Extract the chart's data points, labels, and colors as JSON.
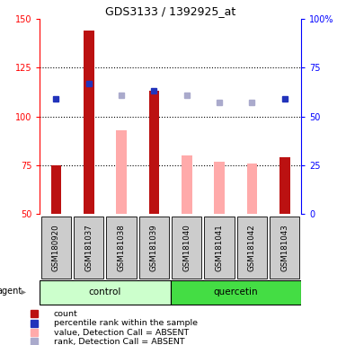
{
  "title": "GDS3133 / 1392925_at",
  "samples": [
    "GSM180920",
    "GSM181037",
    "GSM181038",
    "GSM181039",
    "GSM181040",
    "GSM181041",
    "GSM181042",
    "GSM181043"
  ],
  "red_bars": [
    75,
    144,
    null,
    113,
    null,
    null,
    null,
    79
  ],
  "pink_bars": [
    null,
    null,
    93,
    null,
    80,
    77,
    76,
    null
  ],
  "blue_squares": [
    109,
    117,
    null,
    113,
    null,
    null,
    null,
    109
  ],
  "lavender_squares": [
    null,
    null,
    111,
    null,
    111,
    107,
    107,
    null
  ],
  "ylim_left": [
    50,
    150
  ],
  "ylim_right": [
    0,
    100
  ],
  "yticks_left": [
    50,
    75,
    100,
    125,
    150
  ],
  "yticks_right": [
    0,
    25,
    50,
    75,
    100
  ],
  "ytick_labels_right": [
    "0",
    "25",
    "50",
    "75",
    "100%"
  ],
  "red_color": "#bb1111",
  "pink_color": "#ffaaaa",
  "blue_color": "#2233bb",
  "lavender_color": "#aaaacc",
  "control_light_color": "#ccffcc",
  "quercetin_color": "#44dd44",
  "group_bg_color": "#cccccc",
  "legend_items": [
    {
      "label": "count",
      "color": "#bb1111"
    },
    {
      "label": "percentile rank within the sample",
      "color": "#2233bb"
    },
    {
      "label": "value, Detection Call = ABSENT",
      "color": "#ffaaaa"
    },
    {
      "label": "rank, Detection Call = ABSENT",
      "color": "#aaaacc"
    }
  ],
  "figsize": [
    3.85,
    3.84
  ],
  "dpi": 100
}
